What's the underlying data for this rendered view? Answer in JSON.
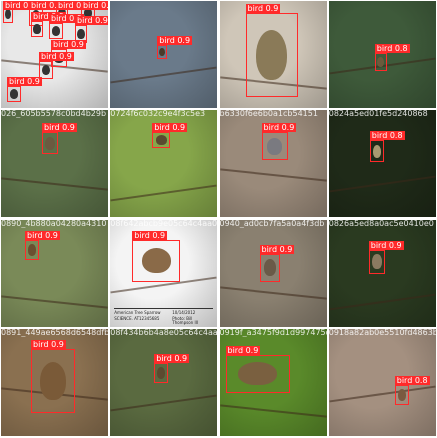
{
  "tiles": [
    {
      "filename": "",
      "bg": "#e8e8e8",
      "bird": "#333333",
      "detections": [
        {
          "label": "bird 0.9"
        },
        {
          "label": "bird 0.9"
        },
        {
          "label": "bird 0.9"
        },
        {
          "label": "bird 0.9"
        },
        {
          "label": "bird 0.9"
        },
        {
          "label": "bird 0.9"
        },
        {
          "label": "bird 0.9"
        },
        {
          "label": "bird 0.9"
        },
        {
          "label": "bird 0.9"
        },
        {
          "label": "bird 0.9"
        }
      ]
    },
    {
      "filename": "",
      "bg": "#6a7a8a",
      "bird": "#4a3a2a",
      "detections": [
        {
          "label": "bird 0.9"
        }
      ]
    },
    {
      "filename": "",
      "bg": "#cfc6b8",
      "bird": "#8a7a58",
      "detections": [
        {
          "label": "bird 0.9"
        }
      ]
    },
    {
      "filename": "",
      "bg": "#3e5a3a",
      "bird": "#6b5a3c",
      "detections": [
        {
          "label": "bird 0.8"
        }
      ]
    },
    {
      "filename": "026_605b5578c0bd4b29b",
      "bg": "#5b7048",
      "bird": "#6a5a40",
      "detections": [
        {
          "label": "bird 0.9"
        }
      ]
    },
    {
      "filename": "0724f6c032c9e4f3c5e3",
      "bg": "#86a64a",
      "bird": "#5a4a30",
      "detections": [
        {
          "label": "bird 0.9"
        }
      ]
    },
    {
      "filename": "b6330f6e6b0a1cb54151",
      "bg": "#9a8a7a",
      "bird": "#7a7a80",
      "detections": [
        {
          "label": "bird 0.9"
        }
      ]
    },
    {
      "filename": "0824a5ed01fe5d240868",
      "bg": "#1f2a18",
      "bird": "#a89a70",
      "detections": [
        {
          "label": "bird 0.8"
        }
      ]
    },
    {
      "filename": "0890_4b880a04280a4310",
      "bg": "#7a8a58",
      "bird": "#6a5030",
      "detections": [
        {
          "label": "bird 0.9"
        }
      ]
    },
    {
      "filename": "08f642abcb9e05c64c4aa0",
      "bg": "#f4f4f4",
      "bird": "#8a6a48",
      "caption": [
        "American Tree Sparrow",
        "10/14/2012",
        "SCIENCE. AT12345685",
        "Photo: Bill Thompson III"
      ],
      "detections": [
        {
          "label": "bird 0.9"
        }
      ]
    },
    {
      "filename": "0940_ad0cb7fa5a0a4f3db",
      "bg": "#8a8070",
      "bird": "#6a5a48",
      "detections": [
        {
          "label": "bird 0.9"
        }
      ]
    },
    {
      "filename": "0826a5ed8a0ac5e0410e0",
      "bg": "#2a3a20",
      "bird": "#8a7a60",
      "detections": [
        {
          "label": "bird 0.9"
        }
      ]
    },
    {
      "filename": "0891_449ae6568d6548dfb",
      "bg": "#8a7050",
      "bird": "#7a5a38",
      "detections": [
        {
          "label": "bird 0.9"
        }
      ]
    },
    {
      "filename": "08f434b6b4a8e05c64c4aa0",
      "bg": "#5a6a40",
      "bird": "#5a4a30",
      "detections": [
        {
          "label": "bird 0.9"
        }
      ]
    },
    {
      "filename": "0919f_a3475f9d1d997475da",
      "bg": "#5a8a2a",
      "bird": "#7a6040",
      "detections": [
        {
          "label": "bird 0.9"
        }
      ]
    },
    {
      "filename": "0918a82ab0e5510fd4863b61",
      "bg": "#a49080",
      "bird": "#7a5a40",
      "detections": [
        {
          "label": "bird 0.8"
        }
      ]
    }
  ]
}
